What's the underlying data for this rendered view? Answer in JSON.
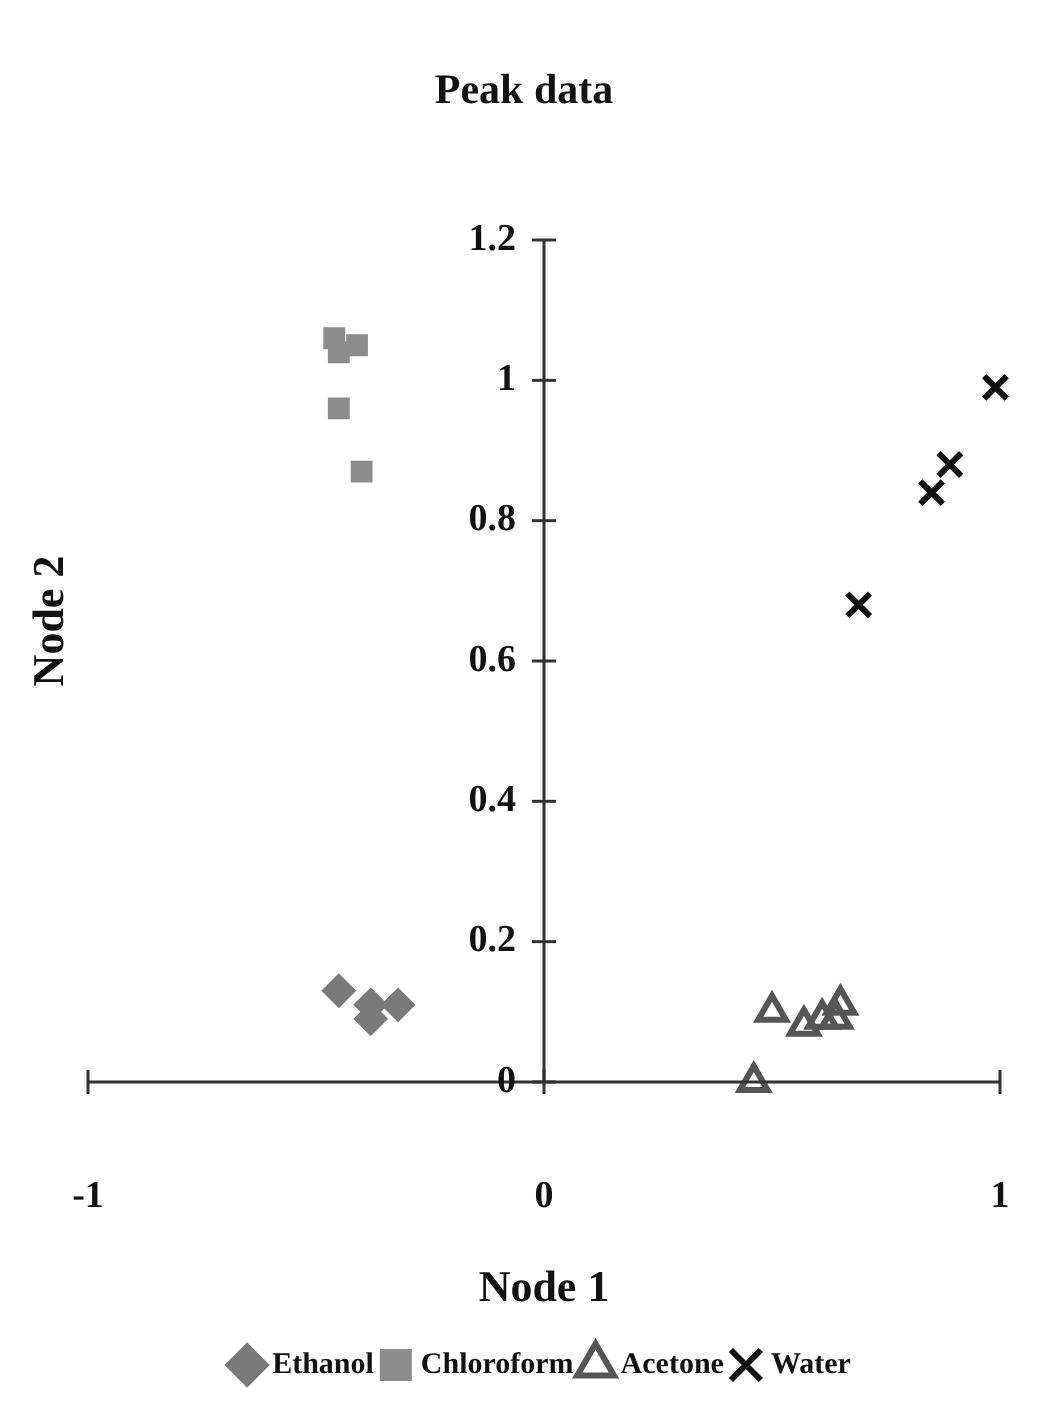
{
  "chart_data": {
    "type": "scatter",
    "title": "Peak data",
    "xlabel": "Node 1",
    "ylabel": "Node 2",
    "xlim": [
      -1,
      1
    ],
    "xticks": [
      -1,
      0,
      1
    ],
    "ylim": [
      0,
      1.2
    ],
    "yticks": [
      0,
      0.2,
      0.4,
      0.6,
      0.8,
      1,
      1.2
    ],
    "grid": false,
    "legend": "bottom",
    "series": [
      {
        "name": "Ethanol",
        "color": "#7a7a7a",
        "marker": "diamond",
        "x": [
          -0.45,
          -0.38,
          -0.38,
          -0.32
        ],
        "values": [
          0.13,
          0.09,
          0.11,
          0.11
        ]
      },
      {
        "name": "Chloroform",
        "color": "#8c8c8c",
        "marker": "square",
        "x": [
          -0.46,
          -0.41,
          -0.45,
          -0.45,
          -0.4
        ],
        "values": [
          1.06,
          1.05,
          1.04,
          0.96,
          0.87
        ]
      },
      {
        "name": "Acetone",
        "color": "#555555",
        "marker": "triangle",
        "x": [
          0.5,
          0.57,
          0.61,
          0.65,
          0.64,
          0.46
        ],
        "values": [
          0.1,
          0.08,
          0.09,
          0.11,
          0.09,
          0
        ]
      },
      {
        "name": "Water",
        "color": "#111111",
        "marker": "cross",
        "x": [
          0.99,
          0.89,
          0.85,
          0.69
        ],
        "values": [
          0.99,
          0.88,
          0.84,
          0.68
        ]
      }
    ]
  }
}
